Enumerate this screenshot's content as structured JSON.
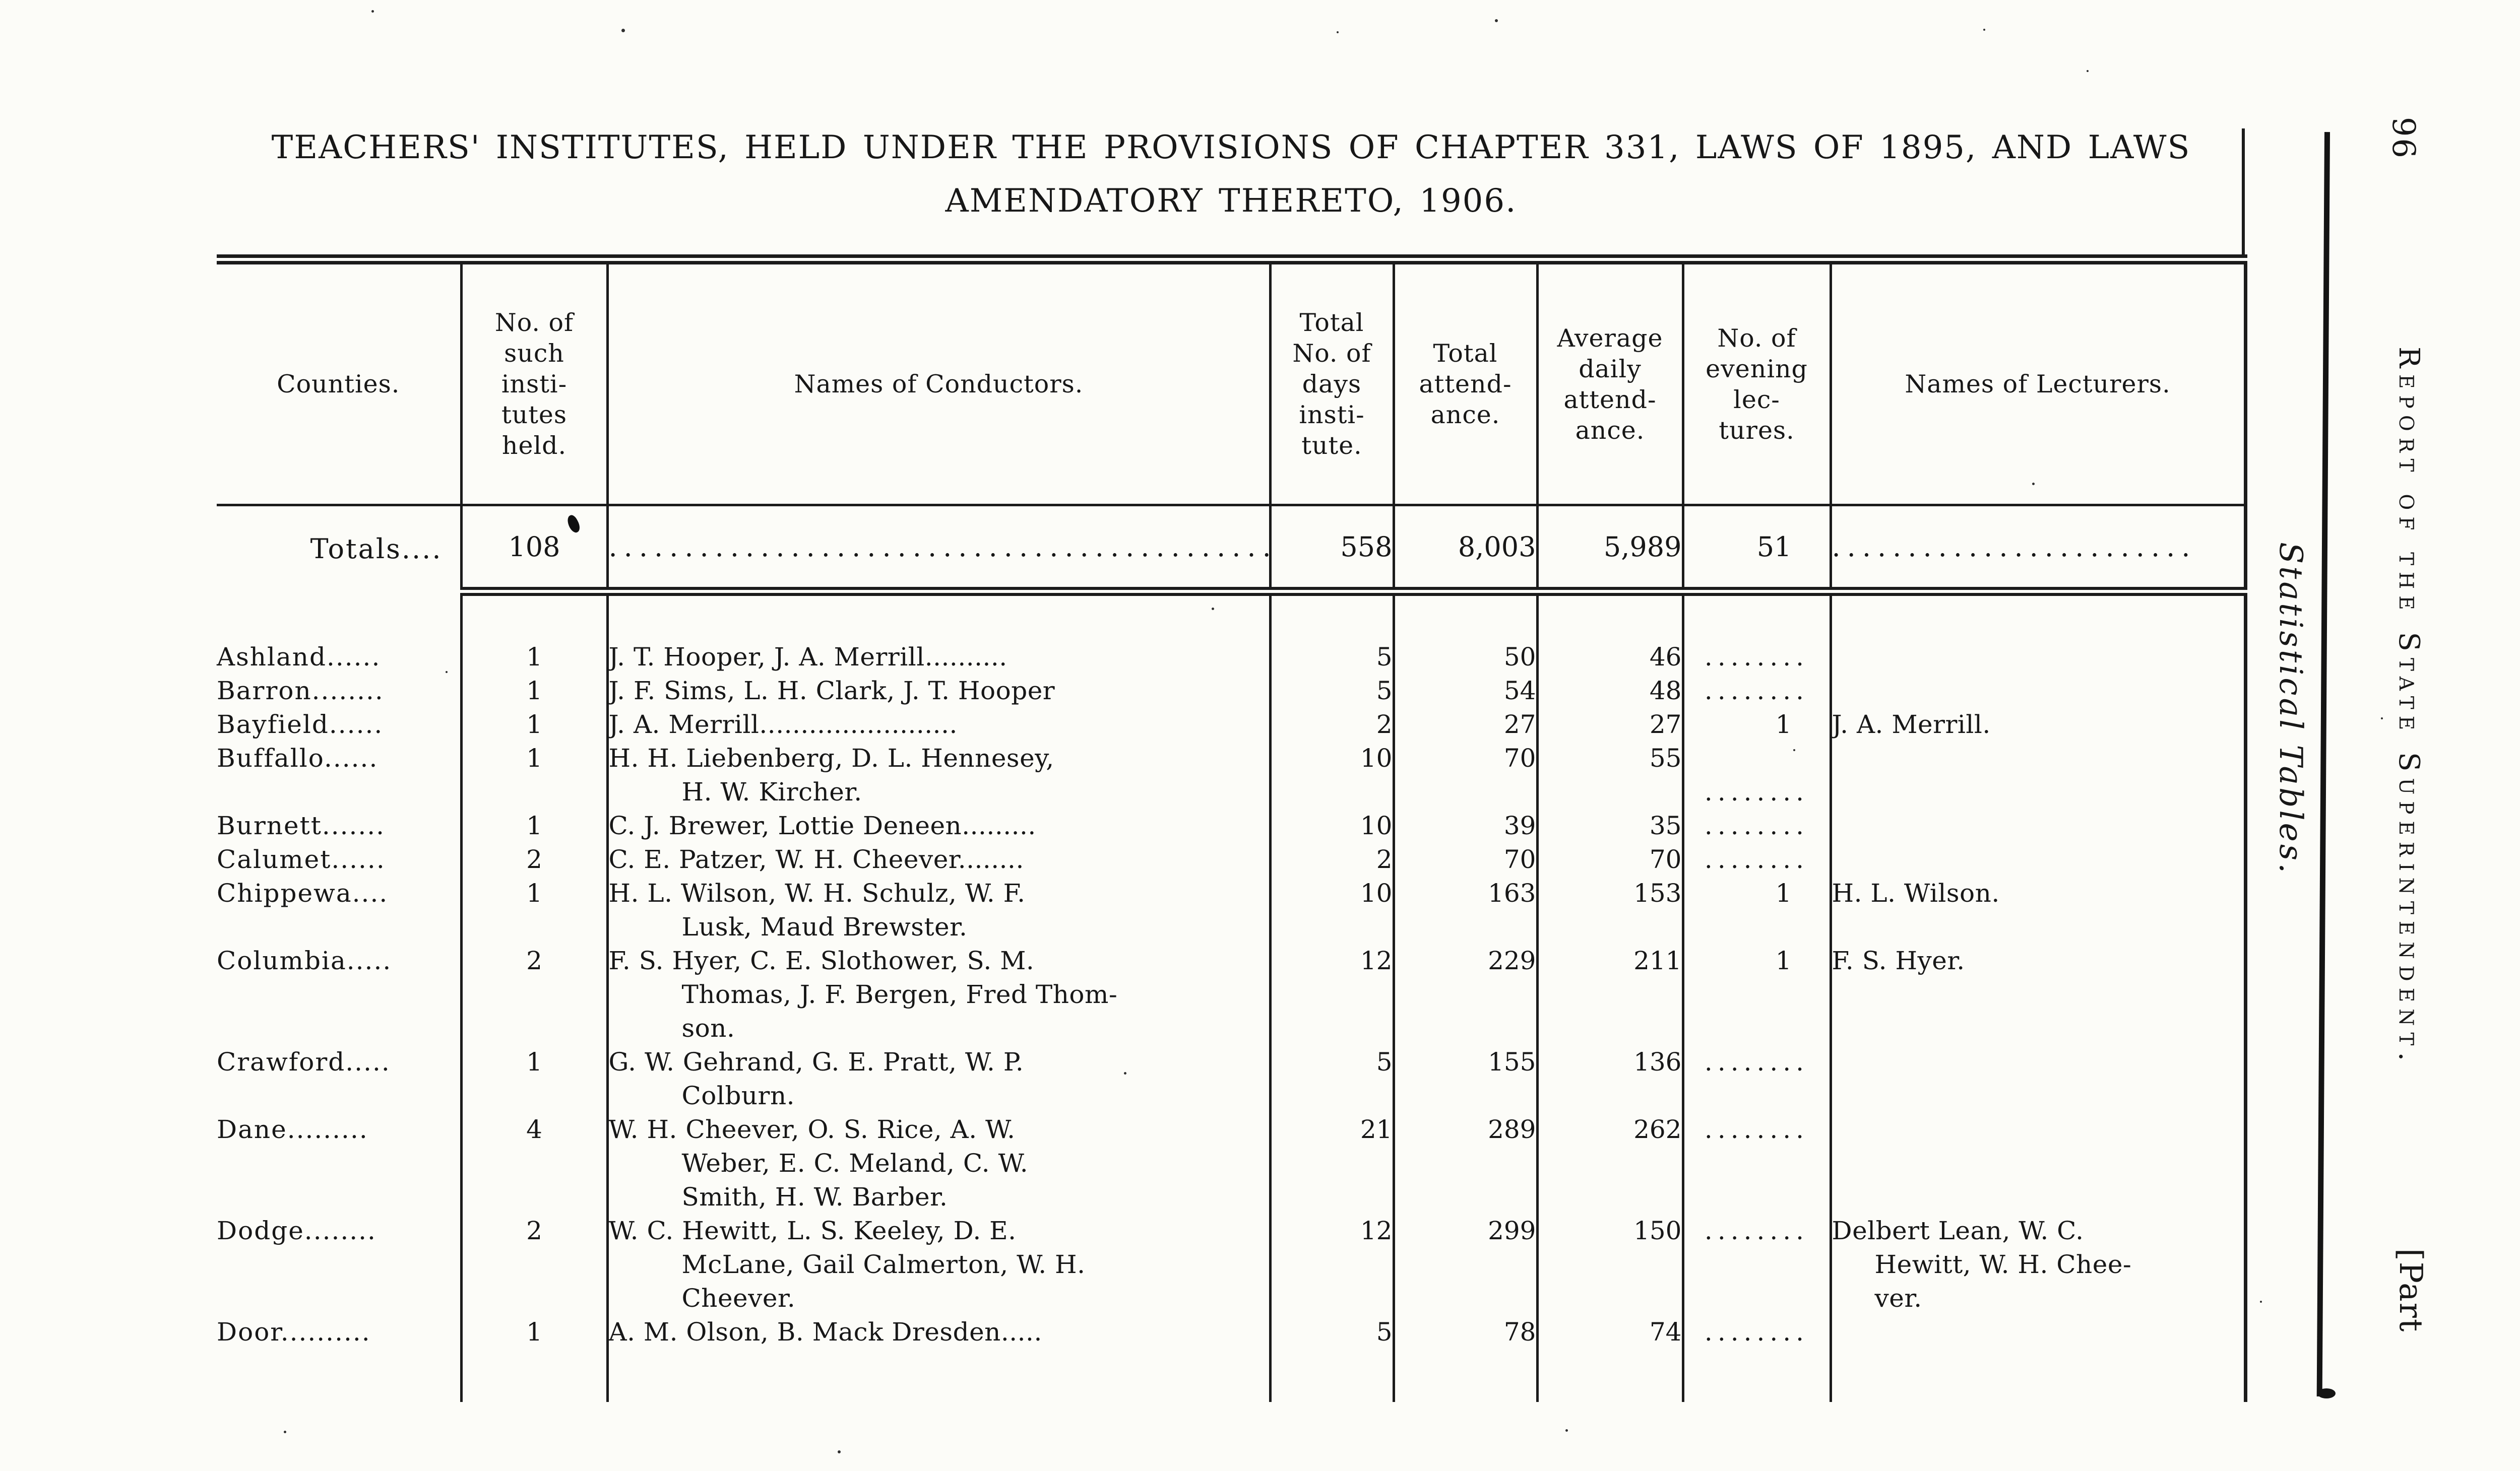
{
  "page": {
    "title_line1": "TEACHERS' INSTITUTES, HELD UNDER THE PROVISIONS OF CHAPTER 331, LAWS OF 1895, AND LAWS",
    "title_line2": "AMENDATORY THERETO, 1906."
  },
  "margin": {
    "page_number": "96",
    "running_header": "Report of the State Superintendent.",
    "section_label": "Statistical Tables.",
    "part_label": "[Part"
  },
  "table": {
    "headers": [
      {
        "id": "counties",
        "lines": [
          "Counties."
        ]
      },
      {
        "id": "institutes",
        "lines": [
          "No. of",
          "such",
          "insti-",
          "tutes",
          "held."
        ]
      },
      {
        "id": "conductors",
        "lines": [
          "Names of Conductors."
        ]
      },
      {
        "id": "days",
        "lines": [
          "Total",
          "No. of",
          "days",
          "insti-",
          "tute."
        ]
      },
      {
        "id": "attendance",
        "lines": [
          "Total",
          "attend-",
          "ance."
        ]
      },
      {
        "id": "avg",
        "lines": [
          "Average",
          "daily",
          "attend-",
          "ance."
        ]
      },
      {
        "id": "evening",
        "lines": [
          "No. of",
          "evening",
          "lec-",
          "tures."
        ]
      },
      {
        "id": "lecturers",
        "lines": [
          "Names of Lecturers."
        ]
      }
    ],
    "totals": {
      "label": "Totals....",
      "institutes": "108",
      "conductors_fill": "..............................................",
      "days": "558",
      "attendance": "8,003",
      "avg": "5,989",
      "evening": "51",
      "lecturers_fill": "........................"
    },
    "rows": [
      {
        "county": "Ashland......",
        "institutes": "1",
        "conductors": [
          "J. T. Hooper, J. A. Merrill.........."
        ],
        "days": "5",
        "attendance": "50",
        "avg": "46",
        "evening": "........",
        "lecturers": []
      },
      {
        "county": "Barron........",
        "institutes": "1",
        "conductors": [
          "J. F. Sims, L. H. Clark, J. T. Hooper"
        ],
        "days": "5",
        "attendance": "54",
        "avg": "48",
        "evening": "........",
        "lecturers": []
      },
      {
        "county": "Bayfield......",
        "institutes": "1",
        "conductors": [
          "J. A. Merrill........................"
        ],
        "days": "2",
        "attendance": "27",
        "avg": "27",
        "evening": "1",
        "lecturers": [
          "J. A. Merrill."
        ]
      },
      {
        "county": "Buffallo......",
        "institutes": "1",
        "conductors": [
          "H. H. Liebenberg, D. L. Hennesey,",
          "H. W. Kircher."
        ],
        "days": "10",
        "attendance": "70",
        "avg": "55",
        "evening": "........",
        "evening_on_line": 2,
        "lecturers": []
      },
      {
        "county": "Burnett.......",
        "institutes": "1",
        "conductors": [
          "C. J. Brewer, Lottie Deneen........."
        ],
        "days": "10",
        "attendance": "39",
        "avg": "35",
        "evening": "........",
        "lecturers": []
      },
      {
        "county": "Calumet......",
        "institutes": "2",
        "conductors": [
          "C. E. Patzer, W. H. Cheever........"
        ],
        "days": "2",
        "attendance": "70",
        "avg": "70",
        "evening": "........",
        "lecturers": []
      },
      {
        "county": "Chippewa....",
        "institutes": "1",
        "conductors": [
          "H. L. Wilson, W. H. Schulz, W. F.",
          "Lusk, Maud Brewster."
        ],
        "days": "10",
        "attendance": "163",
        "avg": "153",
        "evening": "1",
        "lecturers": [
          "H. L. Wilson."
        ]
      },
      {
        "county": "Columbia.....",
        "institutes": "2",
        "conductors": [
          "F. S. Hyer, C. E. Slothower, S. M.",
          "Thomas, J. F. Bergen, Fred Thom-",
          "son."
        ],
        "days": "12",
        "attendance": "229",
        "avg": "211",
        "evening": "1",
        "lecturers": [
          "F. S. Hyer."
        ]
      },
      {
        "county": "Crawford.....",
        "institutes": "1",
        "conductors": [
          "G. W. Gehrand, G. E. Pratt, W. P.",
          "Colburn."
        ],
        "days": "5",
        "attendance": "155",
        "avg": "136",
        "evening": "........",
        "lecturers": []
      },
      {
        "county": "Dane.........",
        "institutes": "4",
        "conductors": [
          "W. H. Cheever, O. S. Rice, A. W.",
          "Weber, E. C. Meland, C. W.",
          "Smith, H. W. Barber."
        ],
        "days": "21",
        "attendance": "289",
        "avg": "262",
        "evening": "........",
        "lecturers": []
      },
      {
        "county": "Dodge........",
        "institutes": "2",
        "conductors": [
          "W. C. Hewitt, L. S. Keeley, D. E.",
          "McLane, Gail Calmerton, W. H.",
          "Cheever."
        ],
        "days": "12",
        "attendance": "299",
        "avg": "150",
        "evening": "........",
        "lecturers": [
          "Delbert Lean, W. C.",
          "Hewitt, W. H. Chee-",
          "ver."
        ]
      },
      {
        "county": "Door..........",
        "institutes": "1",
        "conductors": [
          "A. M. Olson, B. Mack Dresden....."
        ],
        "days": "5",
        "attendance": "78",
        "avg": "74",
        "evening": "........",
        "lecturers": []
      }
    ]
  }
}
